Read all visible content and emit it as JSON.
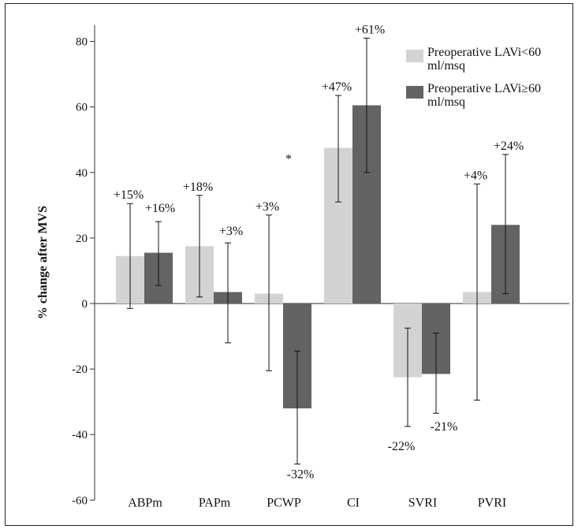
{
  "chart_data": {
    "type": "bar",
    "ylabel": "% change after MVS",
    "ylim": [
      -60,
      85
    ],
    "yticks": [
      -60,
      -40,
      -20,
      0,
      20,
      40,
      60,
      80
    ],
    "ytick_labels": [
      "-60",
      "-40",
      "-20",
      "0",
      "20",
      "40",
      "60",
      "80"
    ],
    "categories": [
      "ABPm",
      "PAPm",
      "PCWP",
      "CI",
      "SVRI",
      "PVRI"
    ],
    "series": [
      {
        "name": "Preoperative LAVi<60 ml/msq",
        "legend_lines": [
          "Preoperative LAVi<60",
          "ml/msq"
        ],
        "color": "#d3d3d3",
        "values": [
          14.5,
          17.5,
          3,
          47.5,
          -22.5,
          3.5
        ],
        "err_low": [
          -1.5,
          2,
          -20.5,
          31,
          -37.5,
          -29.5
        ],
        "err_high": [
          30.5,
          33,
          27,
          63.5,
          -7.5,
          36.5
        ],
        "labels": [
          "+15%",
          "+18%",
          "+3%",
          "+47%",
          "-22%",
          "+4%"
        ]
      },
      {
        "name": "Preoperative LAVi≥60 ml/msq",
        "legend_lines": [
          "Preoperative LAVi≥60",
          "ml/msq"
        ],
        "color": "#636363",
        "values": [
          15.5,
          3.5,
          -32,
          60.5,
          -21.5,
          24
        ],
        "err_low": [
          5.5,
          -12,
          -49,
          40,
          -33.5,
          3
        ],
        "err_high": [
          25,
          18.5,
          -14.5,
          81,
          -9,
          45.5
        ],
        "labels": [
          "+16%",
          "+3%",
          "-32%",
          "+61%",
          "-21%",
          "+24%"
        ]
      }
    ],
    "annotations": [
      {
        "text": "*",
        "category": "PCWP"
      }
    ],
    "legend_position": "top-right",
    "grid": false
  }
}
